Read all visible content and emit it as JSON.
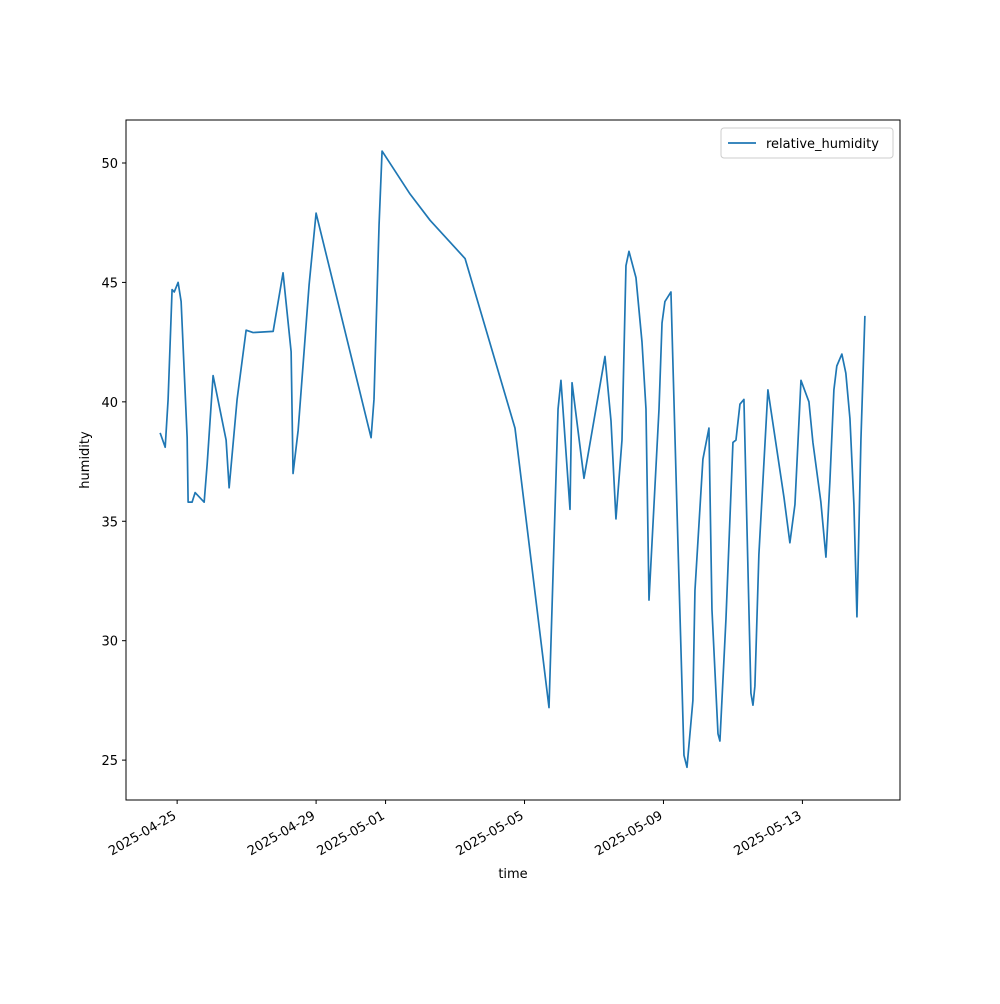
{
  "chart_data": {
    "type": "line",
    "x_label": "time",
    "y_label": "humidity",
    "x": [
      "2025-04-24T12:15",
      "2025-04-24T15:45",
      "2025-04-24T17:45",
      "2025-04-24T20:30",
      "2025-04-24T22:00",
      "2025-04-25T00:40",
      "2025-04-25T02:45",
      "2025-04-25T06:55",
      "2025-04-25T07:35",
      "2025-04-25T10:20",
      "2025-04-25T12:25",
      "2025-04-25T18:40",
      "2025-04-25T20:45",
      "2025-04-26T00:50",
      "2025-04-26T09:50",
      "2025-04-26T11:55",
      "2025-04-26T17:25",
      "2025-04-26T23:40",
      "2025-04-27T04:30",
      "2025-04-27T18:20",
      "2025-04-28T01:10",
      "2025-04-28T06:45",
      "2025-04-28T08:05",
      "2025-04-28T11:35",
      "2025-04-28T19:10",
      "2025-04-29T00:00",
      "2025-04-30T14:00",
      "2025-04-30T16:00",
      "2025-04-30T19:30",
      "2025-04-30T21:35",
      "2025-05-01T16:55",
      "2025-05-02T06:45",
      "2025-05-03T06:55",
      "2025-05-04T17:25",
      "2025-05-05T16:55",
      "2025-05-05T20:25",
      "2025-05-05T23:10",
      "2025-05-06T01:10",
      "2025-05-06T07:25",
      "2025-05-06T08:50",
      "2025-05-06T17:05",
      "2025-05-07T07:35",
      "2025-05-07T11:45",
      "2025-05-07T15:10",
      "2025-05-07T19:20",
      "2025-05-07T22:05",
      "2025-05-08T00:10",
      "2025-05-08T05:00",
      "2025-05-08T09:10",
      "2025-05-08T11:55",
      "2025-05-08T14:00",
      "2025-05-08T20:55",
      "2025-05-08T23:00",
      "2025-05-09T01:00",
      "2025-05-09T05:10",
      "2025-05-09T09:20",
      "2025-05-09T14:10",
      "2025-05-09T16:15",
      "2025-05-09T20:20",
      "2025-05-09T21:45",
      "2025-05-10T03:15",
      "2025-05-10T07:25",
      "2025-05-10T09:30",
      "2025-05-10T13:40",
      "2025-05-10T15:00",
      "2025-05-10T19:10",
      "2025-05-11T00:00",
      "2025-05-11T02:05",
      "2025-05-11T04:50",
      "2025-05-11T07:35",
      "2025-05-11T12:25",
      "2025-05-11T13:50",
      "2025-05-11T15:10",
      "2025-05-11T17:55",
      "2025-05-12T00:10",
      "2025-05-12T11:15",
      "2025-05-12T15:20",
      "2025-05-12T18:50",
      "2025-05-12T23:00",
      "2025-05-13T04:30",
      "2025-05-13T07:15",
      "2025-05-13T12:45",
      "2025-05-13T16:15",
      "2025-05-13T19:00",
      "2025-05-13T21:45",
      "2025-05-13T23:45",
      "2025-05-14T03:15",
      "2025-05-14T06:00",
      "2025-05-14T08:50",
      "2025-05-14T11:35",
      "2025-05-14T13:40",
      "2025-05-14T16:25",
      "2025-05-14T19:10"
    ],
    "series": [
      {
        "name": "relative_humidity",
        "color": "#1f77b4",
        "values": [
          38.7,
          38.1,
          40.1,
          44.7,
          44.6,
          45.0,
          44.2,
          38.5,
          35.8,
          35.8,
          36.2,
          35.8,
          37.4,
          41.1,
          38.4,
          36.4,
          40.1,
          43.0,
          42.9,
          42.95,
          45.4,
          42.1,
          37.0,
          38.8,
          44.9,
          47.9,
          38.5,
          40.1,
          47.4,
          50.5,
          48.7,
          47.6,
          46.0,
          38.9,
          27.2,
          34.2,
          39.7,
          40.9,
          35.5,
          40.8,
          36.8,
          41.9,
          39.2,
          35.1,
          38.4,
          45.7,
          46.3,
          45.2,
          42.5,
          39.7,
          31.7,
          39.7,
          43.3,
          44.2,
          44.6,
          35.5,
          25.2,
          24.7,
          27.5,
          32.1,
          37.6,
          38.9,
          31.3,
          26.1,
          25.8,
          30.9,
          38.3,
          38.4,
          39.9,
          40.1,
          27.8,
          27.3,
          28.1,
          33.6,
          40.5,
          36.0,
          34.1,
          35.7,
          40.9,
          40.0,
          38.3,
          35.8,
          33.5,
          36.7,
          40.5,
          41.5,
          42.0,
          41.2,
          39.3,
          35.7,
          31.0,
          38.4,
          43.6
        ]
      }
    ],
    "xlim": [
      "2025-04-23T12:40",
      "2025-05-15T19:25"
    ],
    "xticks": [
      "2025-04-25",
      "2025-04-29",
      "2025-05-01",
      "2025-05-05",
      "2025-05-09",
      "2025-05-13"
    ],
    "ylim": [
      23.33,
      51.8
    ],
    "yticks": [
      25,
      30,
      35,
      40,
      45,
      50
    ],
    "legend": "upper right",
    "grid": false
  }
}
